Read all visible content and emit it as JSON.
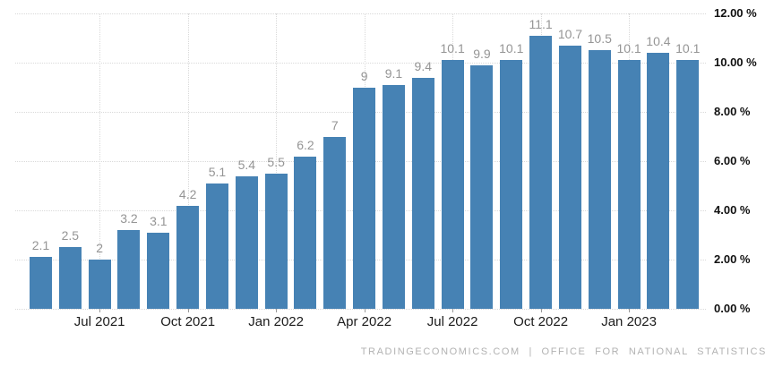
{
  "chart_data": {
    "type": "bar",
    "title": "",
    "xlabel": "",
    "ylabel": "",
    "ylim": [
      0,
      12
    ],
    "grid": true,
    "legend": false,
    "bar_color": "#4682b4",
    "values": [
      2.1,
      2.5,
      2,
      3.2,
      3.1,
      4.2,
      5.1,
      5.4,
      5.5,
      6.2,
      7,
      9,
      9.1,
      9.4,
      10.1,
      9.9,
      10.1,
      11.1,
      10.7,
      10.5,
      10.1,
      10.4,
      10.1
    ],
    "value_labels": [
      "2.1",
      "2.5",
      "2",
      "3.2",
      "3.1",
      "4.2",
      "5.1",
      "5.4",
      "5.5",
      "6.2",
      "7",
      "9",
      "9.1",
      "9.4",
      "10.1",
      "9.9",
      "10.1",
      "11.1",
      "10.7",
      "10.5",
      "10.1",
      "10.4",
      "10.1"
    ],
    "x_ticks": [
      {
        "index": 2,
        "label": "Jul 2021"
      },
      {
        "index": 5,
        "label": "Oct 2021"
      },
      {
        "index": 8,
        "label": "Jan 2022"
      },
      {
        "index": 11,
        "label": "Apr 2022"
      },
      {
        "index": 14,
        "label": "Jul 2022"
      },
      {
        "index": 17,
        "label": "Oct 2022"
      },
      {
        "index": 20,
        "label": "Jan 2023"
      }
    ],
    "y_ticks": [
      {
        "value": 12,
        "label": "12.00 %"
      },
      {
        "value": 10,
        "label": "10.00 %"
      },
      {
        "value": 8,
        "label": "8.00 %"
      },
      {
        "value": 6,
        "label": "6.00 %"
      },
      {
        "value": 4,
        "label": "4.00 %"
      },
      {
        "value": 2,
        "label": "2.00 %"
      },
      {
        "value": 0,
        "label": "0.00 %"
      }
    ]
  },
  "footer": {
    "text": "TRADINGECONOMICS.COM | OFFICE FOR NATIONAL STATISTICS"
  },
  "colors": {
    "bar": "#4682b4",
    "grid": "#d9d9d9",
    "value_label": "#959595",
    "x_label": "#1c1c1c",
    "y_label": "#111111",
    "footer_text": "#b2b2b2"
  }
}
